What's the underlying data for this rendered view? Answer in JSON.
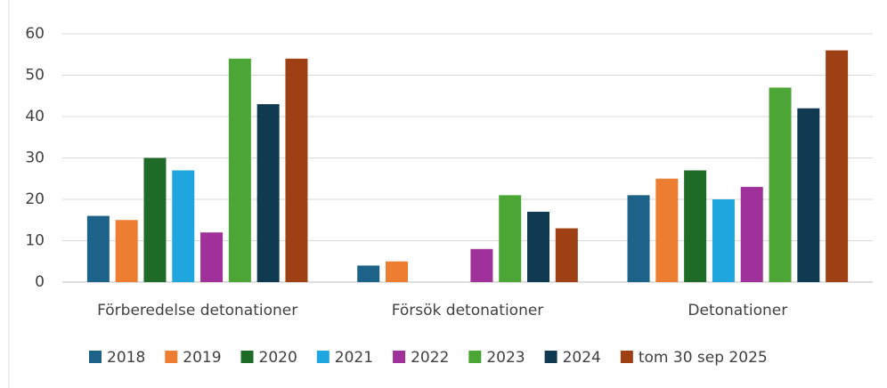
{
  "chart_data": {
    "type": "bar",
    "categories": [
      "Förberedelse detonationer",
      "Försök detonationer",
      "Detonationer"
    ],
    "series": [
      {
        "name": "2018",
        "color": "#1d6288",
        "values": [
          16,
          4,
          21
        ]
      },
      {
        "name": "2019",
        "color": "#ed7d31",
        "values": [
          15,
          5,
          25
        ]
      },
      {
        "name": "2020",
        "color": "#1e6b28",
        "values": [
          30,
          0,
          27
        ]
      },
      {
        "name": "2021",
        "color": "#1fa6df",
        "values": [
          27,
          0,
          20
        ]
      },
      {
        "name": "2022",
        "color": "#a0309a",
        "values": [
          12,
          8,
          23
        ]
      },
      {
        "name": "2023",
        "color": "#4ba636",
        "values": [
          54,
          21,
          47
        ]
      },
      {
        "name": "2024",
        "color": "#0f3a52",
        "values": [
          43,
          17,
          42
        ]
      },
      {
        "name": "tom 30 sep 2025",
        "color": "#9e3f14",
        "values": [
          54,
          13,
          56
        ]
      }
    ],
    "ylim": [
      0,
      60
    ],
    "yticks": [
      0,
      10,
      20,
      30,
      40,
      50,
      60
    ],
    "grid": true,
    "legend": "bottom"
  }
}
